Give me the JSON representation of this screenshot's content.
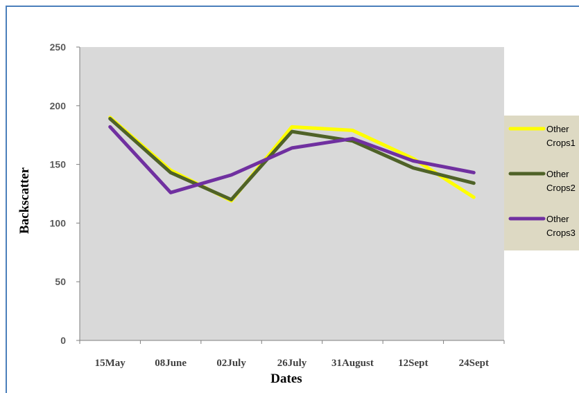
{
  "chart_data": {
    "type": "line",
    "title": "",
    "xlabel": "Dates",
    "ylabel": "Backscatter",
    "categories": [
      "15May",
      "08June",
      "02July",
      "26July",
      "31August",
      "12Sept",
      "24Sept"
    ],
    "ylim": [
      0,
      250
    ],
    "yticks": [
      0,
      50,
      100,
      150,
      200,
      250
    ],
    "ytick_labels": [
      "0",
      "50",
      "100",
      "150",
      "200",
      "250"
    ],
    "grid": false,
    "legend_position": "right",
    "series": [
      {
        "name": "Other Crops1",
        "legend_lines": [
          "Other",
          "Crops1"
        ],
        "color": "#ffff00",
        "values": [
          190,
          145,
          119,
          182,
          179,
          155,
          122
        ]
      },
      {
        "name": "Other Crops2",
        "legend_lines": [
          "Other",
          "Crops2"
        ],
        "color": "#4f6228",
        "values": [
          189,
          143,
          120,
          178,
          170,
          147,
          134
        ]
      },
      {
        "name": "Other Crops3",
        "legend_lines": [
          "Other",
          "Crops3"
        ],
        "color": "#7030a0",
        "values": [
          182,
          126,
          141,
          164,
          172,
          153,
          143
        ]
      }
    ],
    "colors": {
      "plot_background": "#d9d9d9",
      "legend_background": "#ddd9c3",
      "axis": "#7f7f7f"
    }
  }
}
